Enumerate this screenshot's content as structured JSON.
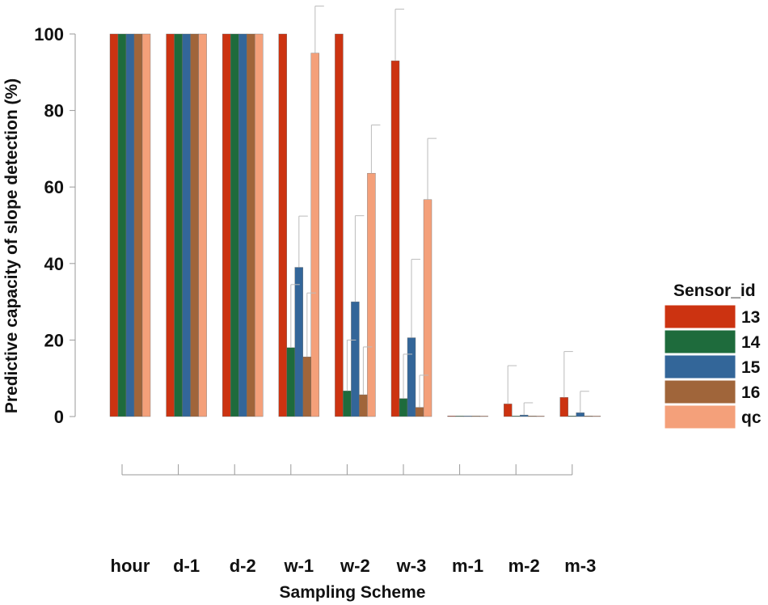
{
  "chart_data": {
    "type": "bar",
    "title": "",
    "xlabel": "Sampling Scheme",
    "ylabel": "Predictive capacity of slope detection (%)",
    "ylim": [
      0,
      100
    ],
    "yticks": [
      0,
      20,
      40,
      60,
      80,
      100
    ],
    "categories": [
      "hour",
      "d-1",
      "d-2",
      "w-1",
      "w-2",
      "w-3",
      "m-1",
      "m-2",
      "m-3"
    ],
    "legend_title": "Sensor_id",
    "legend_position": "right",
    "grid": false,
    "series": [
      {
        "name": "13",
        "color": "#CC3311",
        "values": [
          100,
          100,
          100,
          100,
          100,
          93,
          0,
          3.3,
          5
        ],
        "error": [
          0,
          0,
          0,
          0,
          0,
          13.5,
          0,
          10,
          12
        ]
      },
      {
        "name": "14",
        "color": "#1E6B3C",
        "values": [
          100,
          100,
          100,
          18,
          6.7,
          4.7,
          0,
          0,
          0
        ],
        "error": [
          0,
          0,
          0,
          16.5,
          13.3,
          11.6,
          0,
          0,
          0
        ]
      },
      {
        "name": "15",
        "color": "#336699",
        "values": [
          100,
          100,
          100,
          39,
          30,
          20.6,
          0,
          0.4,
          1
        ],
        "error": [
          0,
          0,
          0,
          13.4,
          22.5,
          20.5,
          0,
          3.2,
          5.6
        ]
      },
      {
        "name": "16",
        "color": "#A0653A",
        "values": [
          100,
          100,
          100,
          15.6,
          5.7,
          2.4,
          0,
          0,
          0
        ],
        "error": [
          0,
          0,
          0,
          16.7,
          12.5,
          8.4,
          0,
          0,
          0
        ]
      },
      {
        "name": "qc",
        "color": "#F4A07A",
        "values": [
          100,
          100,
          100,
          95,
          63.6,
          56.7,
          0,
          0,
          0
        ],
        "error": [
          0,
          0,
          0,
          12.3,
          12.6,
          16,
          0,
          0,
          0
        ]
      }
    ]
  }
}
